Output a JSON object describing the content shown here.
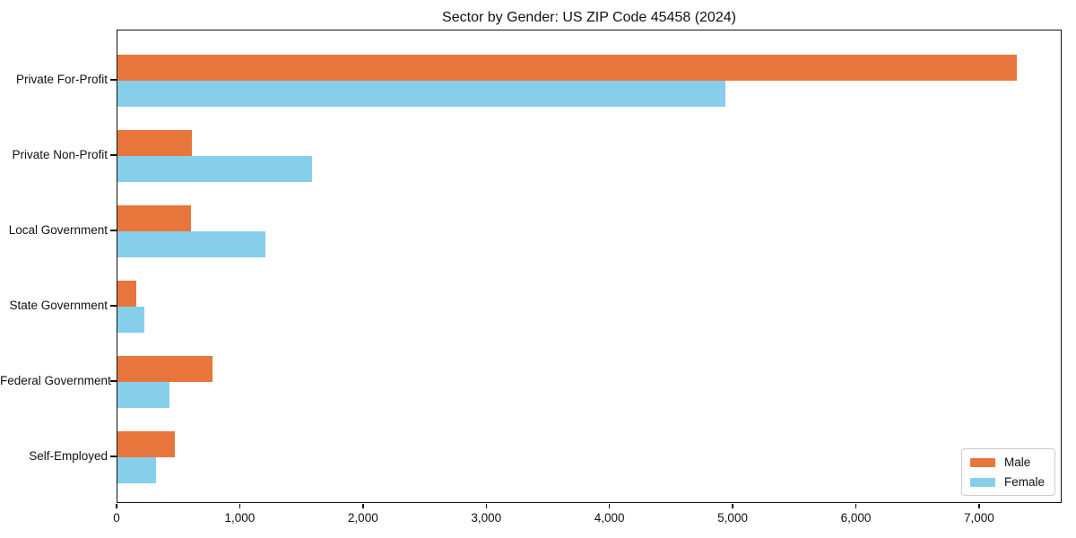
{
  "chart_data": {
    "type": "bar",
    "orientation": "horizontal",
    "title": "Sector by Gender: US ZIP Code 45458 (2024)",
    "categories": [
      "Private For-Profit",
      "Private Non-Profit",
      "Local Government",
      "State Government",
      "Federal Government",
      "Self-Employed"
    ],
    "series": [
      {
        "name": "Male",
        "color": "#e8763c",
        "values": [
          7310,
          605,
          595,
          150,
          775,
          470
        ]
      },
      {
        "name": "Female",
        "color": "#87ceeb",
        "values": [
          4940,
          1580,
          1205,
          220,
          420,
          310
        ]
      }
    ],
    "xlabel": "",
    "ylabel": "",
    "xlim": [
      0,
      7670
    ],
    "x_ticks": [
      {
        "value": 0,
        "label": "0"
      },
      {
        "value": 1000,
        "label": "1,000"
      },
      {
        "value": 2000,
        "label": "2,000"
      },
      {
        "value": 3000,
        "label": "3,000"
      },
      {
        "value": 4000,
        "label": "4,000"
      },
      {
        "value": 5000,
        "label": "5,000"
      },
      {
        "value": 6000,
        "label": "6,000"
      },
      {
        "value": 7000,
        "label": "7,000"
      }
    ],
    "grid": false,
    "legend": {
      "position": "lower right"
    }
  }
}
